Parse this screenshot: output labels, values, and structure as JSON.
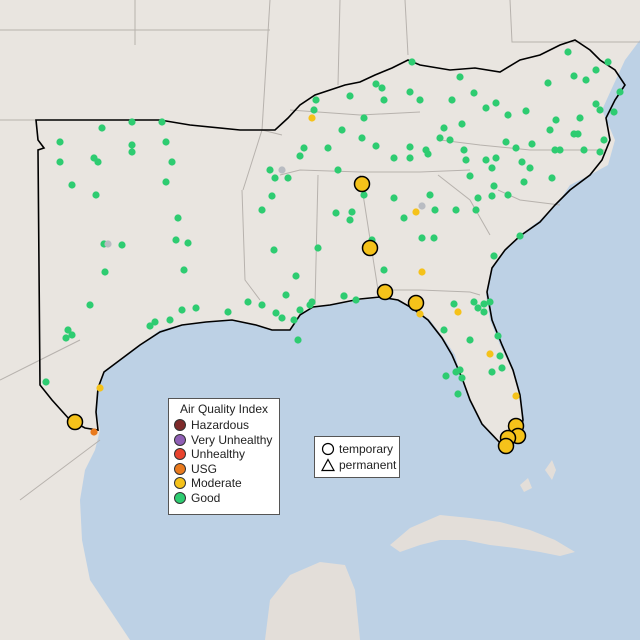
{
  "map": {
    "colors": {
      "ocean": "#bdd1e5",
      "land": "#e9e5e0",
      "land_other": "#e3ded9",
      "state_border": "#b7b2ad",
      "region_border": "#000000"
    }
  },
  "legend_aqi": {
    "title": "Air Quality Index",
    "items": [
      {
        "label": "Hazardous",
        "color": "#7e2a2a"
      },
      {
        "label": "Very Unhealthy",
        "color": "#8f5fb5"
      },
      {
        "label": "Unhealthy",
        "color": "#e8432e"
      },
      {
        "label": "USG",
        "color": "#e97a1d"
      },
      {
        "label": "Moderate",
        "color": "#f5c21a"
      },
      {
        "label": "Good",
        "color": "#2ecc71"
      }
    ]
  },
  "legend_type": {
    "temporary": "temporary",
    "permanent": "permanent"
  }
}
